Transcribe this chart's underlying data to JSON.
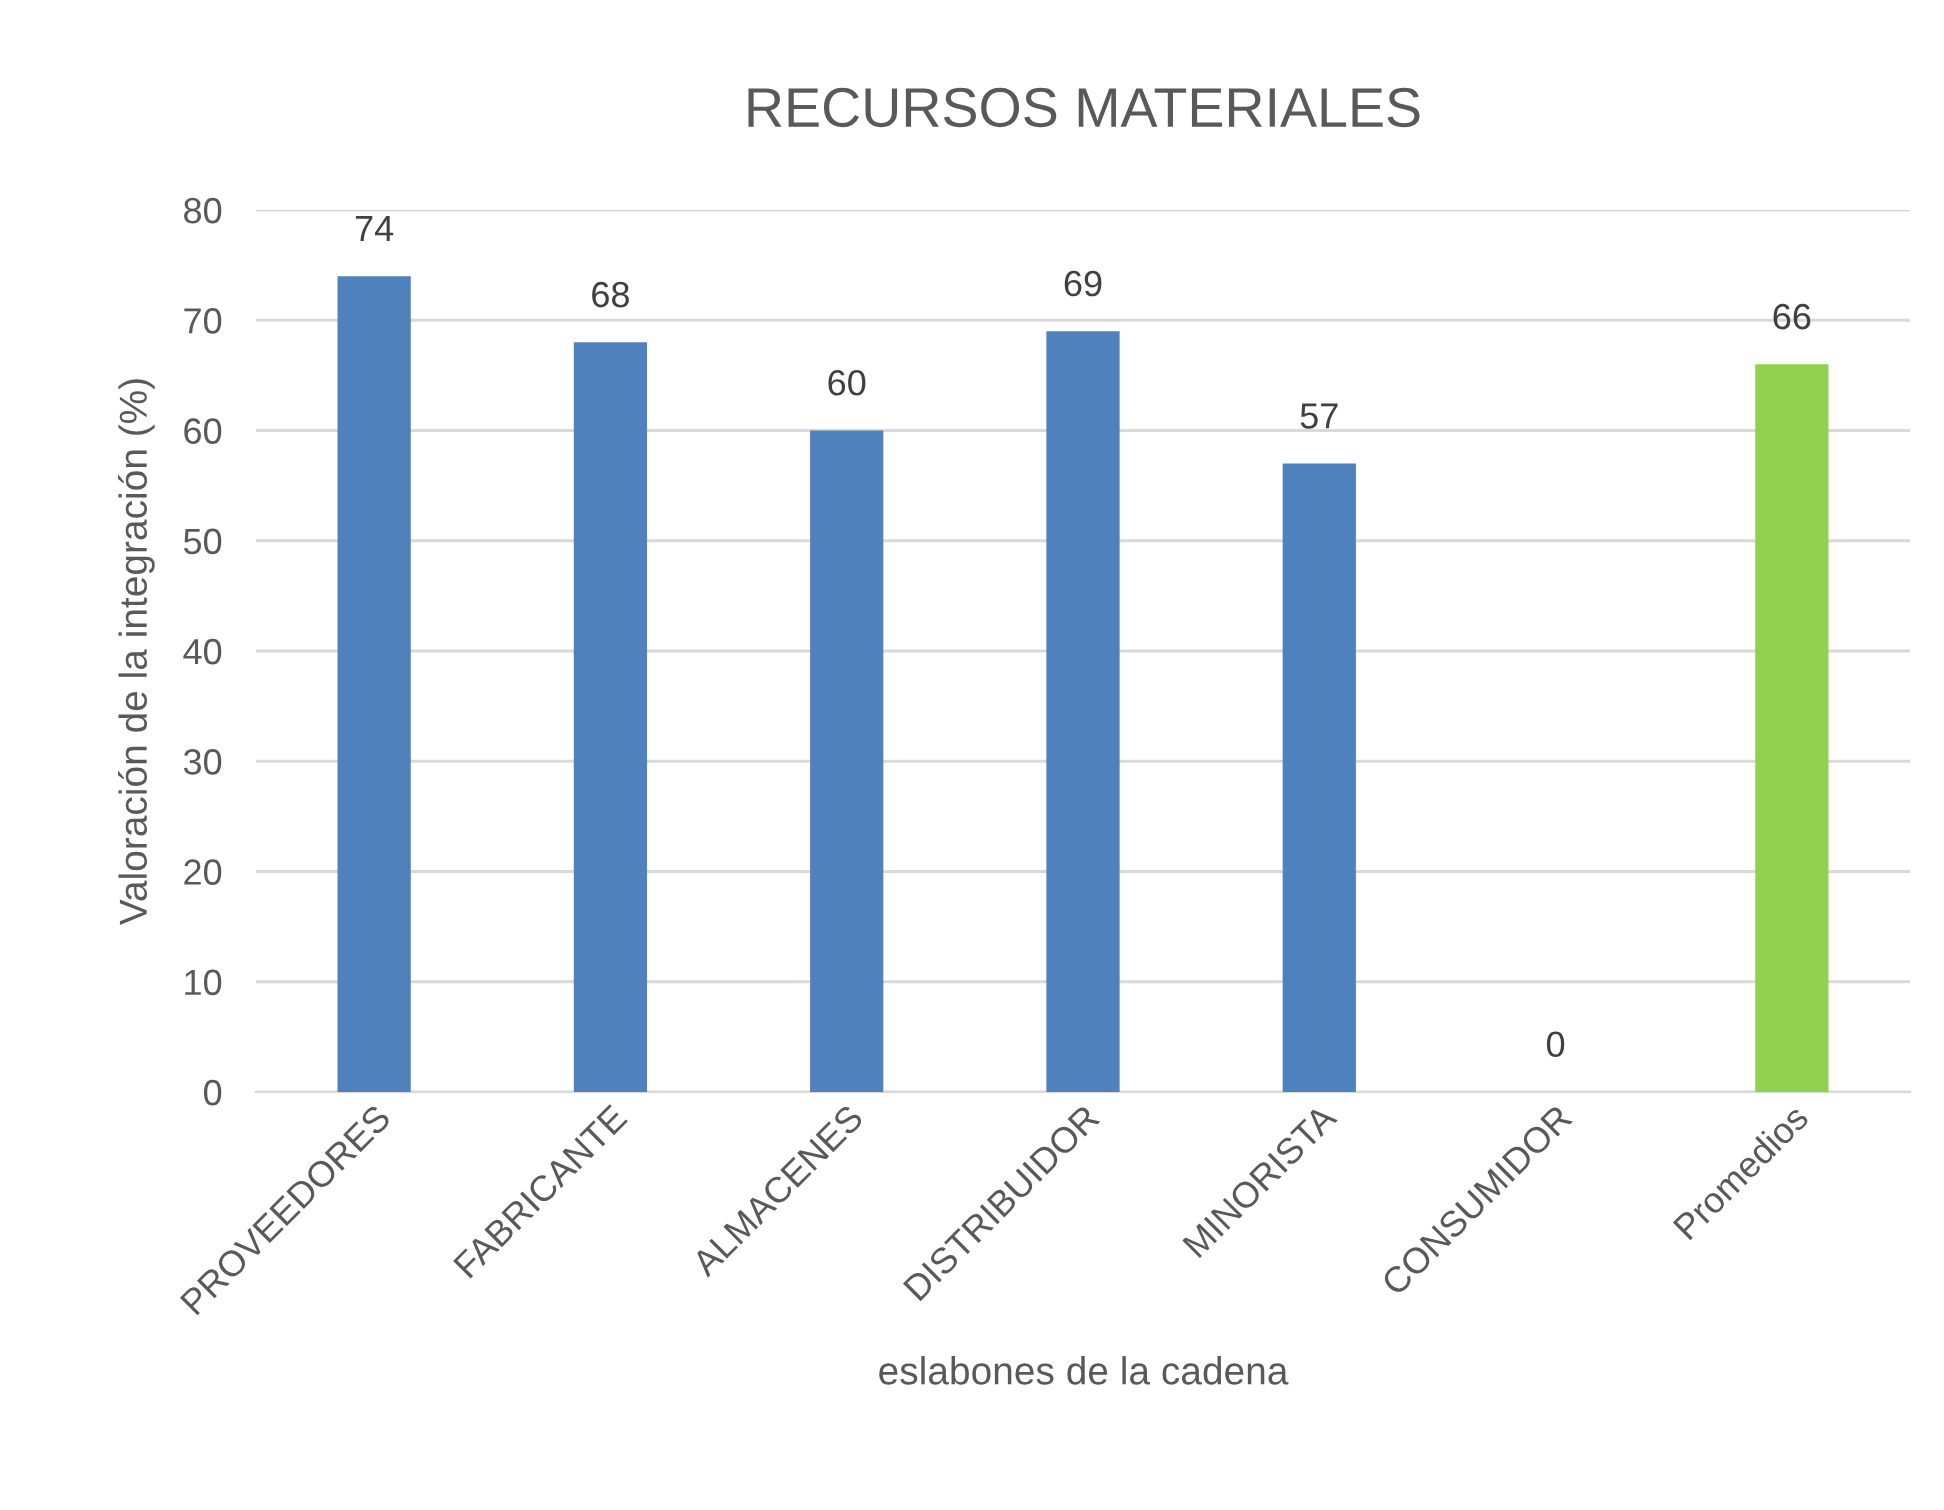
{
  "chart_data": {
    "type": "bar",
    "title": "RECURSOS MATERIALES",
    "xlabel": "eslabones de la cadena",
    "ylabel": "Valoración de la integración (%)",
    "categories": [
      "PROVEEDORES",
      "FABRICANTE",
      "ALMACENES",
      "DISTRIBUIDOR",
      "MINORISTA",
      "CONSUMIDOR",
      "Promedios"
    ],
    "values": [
      74,
      68,
      60,
      69,
      57,
      0,
      66
    ],
    "colors": [
      "#4f81bd",
      "#4f81bd",
      "#4f81bd",
      "#4f81bd",
      "#4f81bd",
      "#4f81bd",
      "#92d050"
    ],
    "ylim": [
      0,
      80
    ],
    "yticks": [
      0,
      10,
      20,
      30,
      40,
      50,
      60,
      70,
      80
    ],
    "grid": "y",
    "data_labels": true
  }
}
